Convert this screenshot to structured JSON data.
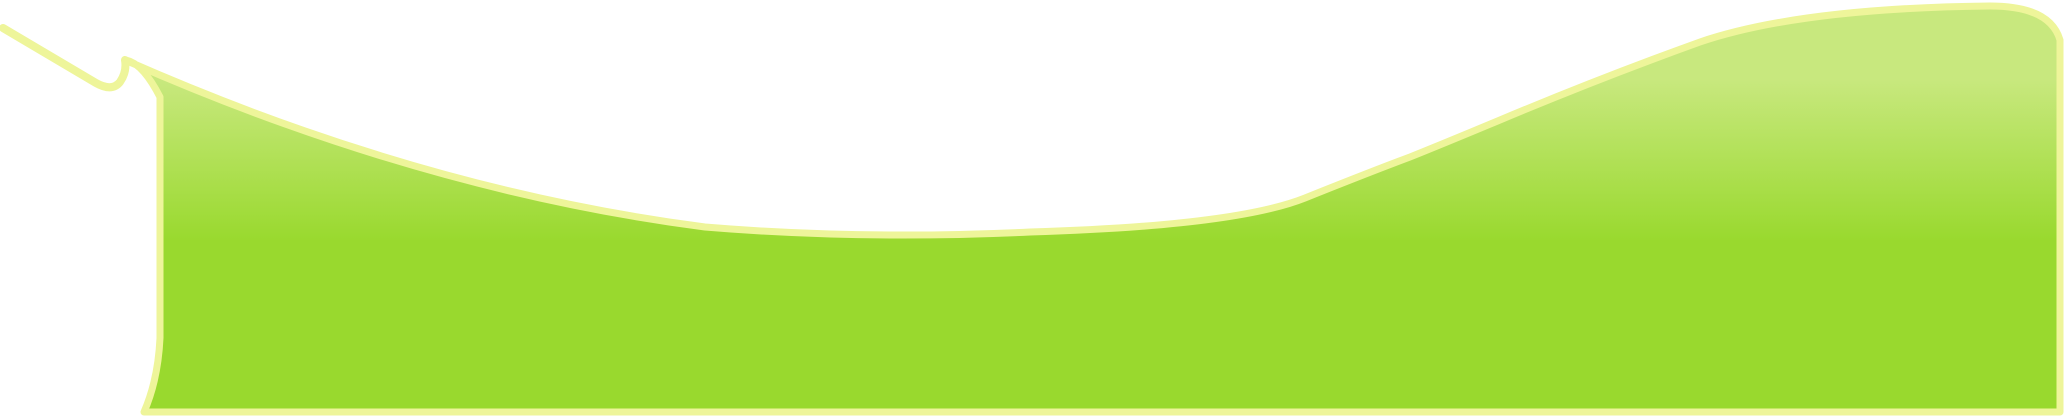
{
  "colors": {
    "background": "#ffffff",
    "outline": "#eef59a",
    "fill_top": "#c8e87e",
    "fill_bottom": "#99d92e"
  }
}
